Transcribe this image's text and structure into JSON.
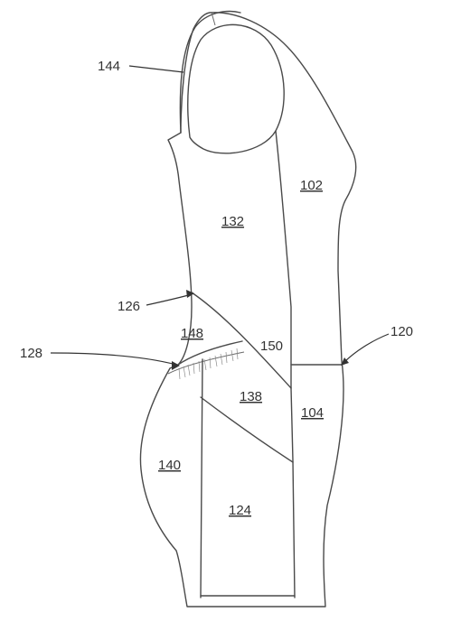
{
  "figure": {
    "labels": {
      "l144": "144",
      "l102": "102",
      "l132": "132",
      "l126": "126",
      "l148": "148",
      "l150": "150",
      "l120": "120",
      "l128": "128",
      "l138": "138",
      "l104": "104",
      "l140": "140",
      "l124": "124"
    }
  }
}
